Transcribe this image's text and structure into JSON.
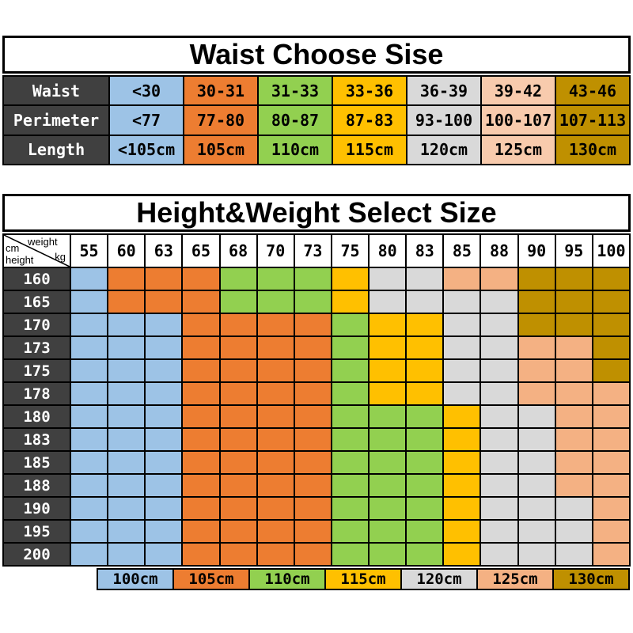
{
  "chart_data": [
    {
      "type": "table",
      "title": "Waist Choose Sise",
      "label_bg": "#404040",
      "column_colors": [
        "#9DC3E6",
        "#ED7D31",
        "#92D050",
        "#FFC000",
        "#D9D9D9",
        "#F8CBAD",
        "#BF9000"
      ],
      "rows": [
        {
          "label": "Waist",
          "cells": [
            "<30",
            "30-31",
            "31-33",
            "33-36",
            "36-39",
            "39-42",
            "43-46"
          ]
        },
        {
          "label": "Perimeter",
          "cells": [
            "<77",
            "77-80",
            "80-87",
            "87-83",
            "93-100",
            "100-107",
            "107-113"
          ]
        },
        {
          "label": "Length",
          "cells": [
            "<105cm",
            "105cm",
            "110cm",
            "115cm",
            "120cm",
            "125cm",
            "130cm"
          ]
        }
      ]
    },
    {
      "type": "heatmap",
      "title": "Height&Weight Select Size",
      "corner": {
        "weight_label": "weight",
        "weight_unit": "kg",
        "height_unit": "cm",
        "height_label": "height"
      },
      "label_bg": "#404040",
      "x_weights_kg": [
        "55",
        "60",
        "63",
        "65",
        "68",
        "70",
        "73",
        "75",
        "80",
        "83",
        "85",
        "88",
        "90",
        "95",
        "100"
      ],
      "y_heights_cm": [
        "160",
        "165",
        "170",
        "173",
        "175",
        "178",
        "180",
        "183",
        "185",
        "188",
        "190",
        "195",
        "200"
      ],
      "color_by_key": {
        "B": "#9DC3E6",
        "O": "#ED7D31",
        "G": "#92D050",
        "Y": "#FFC000",
        "S": "#D9D9D9",
        "P": "#F4B183",
        "D": "#BF9000"
      },
      "size_by_key": {
        "B": "100cm",
        "O": "105cm",
        "G": "110cm",
        "Y": "115cm",
        "S": "120cm",
        "P": "125cm",
        "D": "130cm"
      },
      "cells": [
        "BOOOGGGYSSPPDDD",
        "BOOOGGGYSSSSDDD",
        "BBBOOOOGYYSSDDD",
        "BBBOOOOGYYSSPPD",
        "BBBOOOOGYYSSPPD",
        "BBBOOOOGYYSSPPP",
        "BBBOOOOGGGYSSPP",
        "BBBOOOOGGGYSSPP",
        "BBBOOOOGGGYSSPP",
        "BBBOOOOGGGYSSPP",
        "BBBOOOOGGGYSSSP",
        "BBBOOOOGGGYSSSP",
        "BBBOOOOGGGYSSSP"
      ],
      "legend": [
        {
          "label": "100cm",
          "color": "#9DC3E6"
        },
        {
          "label": "105cm",
          "color": "#ED7D31"
        },
        {
          "label": "110cm",
          "color": "#92D050"
        },
        {
          "label": "115cm",
          "color": "#FFC000"
        },
        {
          "label": "120cm",
          "color": "#D9D9D9"
        },
        {
          "label": "125cm",
          "color": "#F4B183"
        },
        {
          "label": "130cm",
          "color": "#BF9000"
        }
      ]
    }
  ]
}
